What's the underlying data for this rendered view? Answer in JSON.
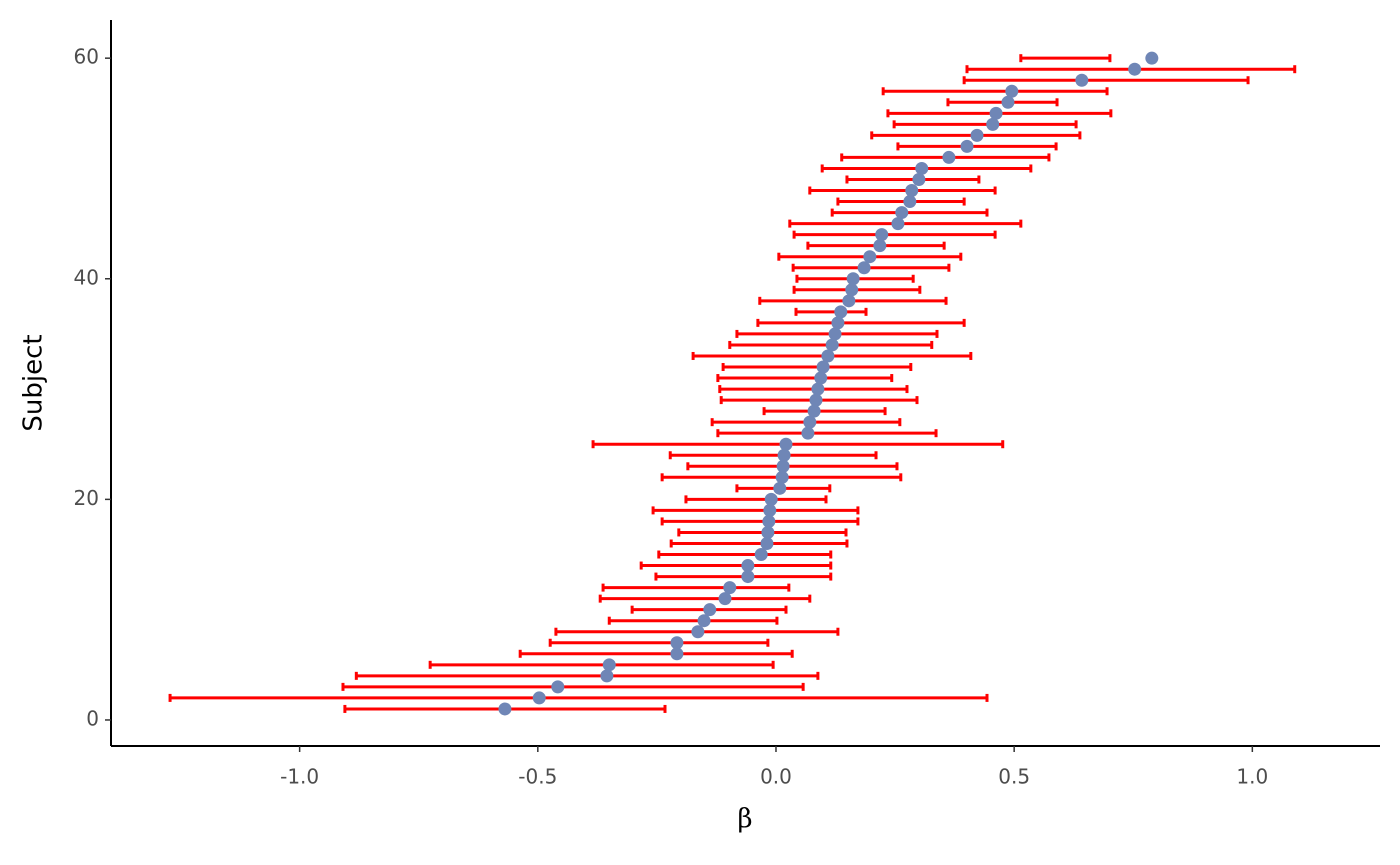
{
  "chart_data": {
    "type": "errorbar_h",
    "xlabel": "β",
    "ylabel": "Subject",
    "point_color": "#6f86b6",
    "bar_color": "#ff0000",
    "xlim": [
      -1.396,
      1.268
    ],
    "xticks": [
      {
        "value": -1.0,
        "label": "-1.0"
      },
      {
        "value": -0.5,
        "label": "-0.5"
      },
      {
        "value": 0.0,
        "label": "0.0"
      },
      {
        "value": 0.5,
        "label": "0.5"
      },
      {
        "value": 1.0,
        "label": "1.0"
      }
    ],
    "ylim": [
      -2.36,
      63.46
    ],
    "yticks": [
      0,
      20,
      40,
      60
    ],
    "y": [
      1,
      2,
      3,
      4,
      5,
      6,
      7,
      8,
      9,
      10,
      11,
      12,
      13,
      14,
      15,
      16,
      17,
      18,
      19,
      20,
      21,
      22,
      23,
      24,
      25,
      26,
      27,
      28,
      29,
      30,
      31,
      32,
      33,
      34,
      35,
      36,
      37,
      38,
      39,
      40,
      41,
      42,
      43,
      44,
      45,
      46,
      47,
      48,
      49,
      50,
      51,
      52,
      53,
      54,
      55,
      56,
      57,
      58,
      59,
      60
    ],
    "x": [
      -0.569,
      -0.497,
      -0.458,
      -0.355,
      -0.35,
      -0.208,
      -0.208,
      -0.164,
      -0.151,
      -0.139,
      -0.107,
      -0.097,
      -0.059,
      -0.059,
      -0.031,
      -0.019,
      -0.017,
      -0.015,
      -0.013,
      -0.01,
      0.008,
      0.013,
      0.015,
      0.017,
      0.021,
      0.067,
      0.071,
      0.08,
      0.084,
      0.088,
      0.094,
      0.099,
      0.109,
      0.118,
      0.124,
      0.13,
      0.136,
      0.153,
      0.159,
      0.162,
      0.185,
      0.197,
      0.218,
      0.222,
      0.256,
      0.264,
      0.281,
      0.285,
      0.3,
      0.306,
      0.363,
      0.401,
      0.422,
      0.455,
      0.462,
      0.487,
      0.495,
      0.642,
      0.753,
      0.789
    ],
    "lower": [
      -0.905,
      -1.272,
      -0.909,
      -0.881,
      -0.726,
      -0.537,
      -0.474,
      -0.462,
      -0.35,
      -0.302,
      -0.369,
      -0.363,
      -0.252,
      -0.283,
      -0.246,
      -0.22,
      -0.204,
      -0.239,
      -0.258,
      -0.189,
      -0.082,
      -0.239,
      -0.185,
      -0.222,
      -0.384,
      -0.122,
      -0.134,
      -0.025,
      -0.115,
      -0.118,
      -0.122,
      -0.111,
      -0.174,
      -0.097,
      -0.082,
      -0.038,
      0.042,
      -0.034,
      0.038,
      0.044,
      0.036,
      0.006,
      0.067,
      0.038,
      0.029,
      0.118,
      0.13,
      0.071,
      0.149,
      0.097,
      0.138,
      0.256,
      0.201,
      0.248,
      0.235,
      0.361,
      0.225,
      0.395,
      0.401,
      0.514
    ],
    "upper": [
      -0.233,
      0.443,
      0.057,
      0.088,
      -0.006,
      0.034,
      -0.017,
      0.13,
      0.002,
      0.021,
      0.071,
      0.027,
      0.115,
      0.115,
      0.115,
      0.149,
      0.147,
      0.172,
      0.172,
      0.105,
      0.113,
      0.262,
      0.254,
      0.21,
      0.476,
      0.336,
      0.26,
      0.229,
      0.296,
      0.275,
      0.243,
      0.283,
      0.409,
      0.327,
      0.338,
      0.395,
      0.189,
      0.357,
      0.302,
      0.288,
      0.363,
      0.388,
      0.353,
      0.46,
      0.514,
      0.443,
      0.395,
      0.46,
      0.426,
      0.535,
      0.573,
      0.588,
      0.638,
      0.63,
      0.703,
      0.59,
      0.695,
      0.991,
      1.089,
      0.701
    ]
  }
}
